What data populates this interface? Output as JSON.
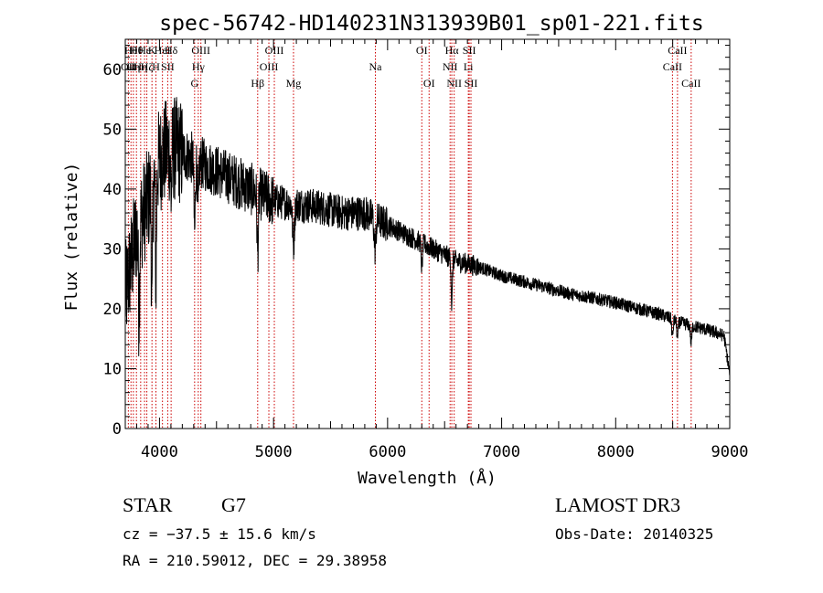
{
  "chart_data": {
    "type": "line",
    "title": "spec-56742-HD140231N313939B01_sp01-221.fits",
    "xlabel": "Wavelength (Å)",
    "ylabel": "Flux (relative)",
    "xlim": [
      3700,
      9000
    ],
    "ylim": [
      0,
      65
    ],
    "x_ticks": [
      4000,
      5000,
      6000,
      7000,
      8000,
      9000
    ],
    "y_ticks": [
      0,
      10,
      20,
      30,
      40,
      50,
      60
    ],
    "series": [
      {
        "name": "spectrum",
        "continuum": [
          [
            3700,
            22
          ],
          [
            3800,
            33
          ],
          [
            3900,
            38
          ],
          [
            4000,
            45
          ],
          [
            4100,
            47
          ],
          [
            4200,
            46
          ],
          [
            4300,
            45
          ],
          [
            4400,
            44
          ],
          [
            4500,
            43
          ],
          [
            4600,
            42
          ],
          [
            4700,
            41
          ],
          [
            4800,
            40
          ],
          [
            4900,
            39
          ],
          [
            5000,
            38
          ],
          [
            5200,
            37.5
          ],
          [
            5400,
            37
          ],
          [
            5600,
            36
          ],
          [
            5800,
            36
          ],
          [
            6000,
            34
          ],
          [
            6200,
            32
          ],
          [
            6400,
            30
          ],
          [
            6600,
            28
          ],
          [
            6800,
            27
          ],
          [
            7000,
            25.5
          ],
          [
            7200,
            24.5
          ],
          [
            7400,
            23.5
          ],
          [
            7600,
            22.5
          ],
          [
            7800,
            21.8
          ],
          [
            8000,
            21
          ],
          [
            8200,
            20
          ],
          [
            8400,
            19
          ],
          [
            8600,
            17.5
          ],
          [
            8800,
            16.5
          ],
          [
            8950,
            15.5
          ],
          [
            9000,
            9
          ]
        ],
        "absorption_features": [
          {
            "center": 3820,
            "depth": 14,
            "width": 6
          },
          {
            "center": 3934,
            "depth": 22,
            "width": 5
          },
          {
            "center": 3969,
            "depth": 18,
            "width": 5
          },
          {
            "center": 4102,
            "depth": 8,
            "width": 6
          },
          {
            "center": 4308,
            "depth": 12,
            "width": 6
          },
          {
            "center": 4340,
            "depth": 8,
            "width": 6
          },
          {
            "center": 4861,
            "depth": 10,
            "width": 6
          },
          {
            "center": 5175,
            "depth": 7,
            "width": 8
          },
          {
            "center": 5890,
            "depth": 5,
            "width": 8
          },
          {
            "center": 6300,
            "depth": 4,
            "width": 6
          },
          {
            "center": 6563,
            "depth": 8,
            "width": 5
          },
          {
            "center": 8498,
            "depth": 3,
            "width": 6
          },
          {
            "center": 8542,
            "depth": 3,
            "width": 6
          },
          {
            "center": 8662,
            "depth": 3,
            "width": 6
          }
        ]
      }
    ],
    "line_markers": [
      {
        "x": 3727,
        "row": 1,
        "label": "OII"
      },
      {
        "x": 3750,
        "row": 0,
        "label": "Hθ"
      },
      {
        "x": 3771,
        "row": 1,
        "label": "Hη"
      },
      {
        "x": 3798,
        "row": 0,
        "label": "Hθ"
      },
      {
        "x": 3835,
        "row": 1,
        "label": "Hη"
      },
      {
        "x": 3869,
        "row": 0,
        "label": "He"
      },
      {
        "x": 3889,
        "row": 1,
        "label": "Hζ"
      },
      {
        "x": 3934,
        "row": 0,
        "label": "K"
      },
      {
        "x": 3969,
        "row": 1,
        "label": "H"
      },
      {
        "x": 4026,
        "row": 0,
        "label": "HeI"
      },
      {
        "x": 4072,
        "row": 1,
        "label": "SII"
      },
      {
        "x": 4102,
        "row": 0,
        "label": "Hδ"
      },
      {
        "x": 4308,
        "row": 2,
        "label": "G"
      },
      {
        "x": 4340,
        "row": 1,
        "label": "Hγ"
      },
      {
        "x": 4363,
        "row": 0,
        "label": "OIII"
      },
      {
        "x": 4861,
        "row": 2,
        "label": "Hβ"
      },
      {
        "x": 4959,
        "row": 1,
        "label": "OIII"
      },
      {
        "x": 5007,
        "row": 0,
        "label": "OIII"
      },
      {
        "x": 5175,
        "row": 2,
        "label": "Mg"
      },
      {
        "x": 5893,
        "row": 1,
        "label": "Na"
      },
      {
        "x": 6300,
        "row": 0,
        "label": "OI"
      },
      {
        "x": 6364,
        "row": 2,
        "label": "OI"
      },
      {
        "x": 6548,
        "row": 1,
        "label": "NII"
      },
      {
        "x": 6563,
        "row": 0,
        "label": "Hα"
      },
      {
        "x": 6584,
        "row": 2,
        "label": "NII"
      },
      {
        "x": 6708,
        "row": 1,
        "label": "Li"
      },
      {
        "x": 6716,
        "row": 0,
        "label": "SII"
      },
      {
        "x": 6731,
        "row": 2,
        "label": "SII"
      },
      {
        "x": 8498,
        "row": 1,
        "label": "CaII"
      },
      {
        "x": 8542,
        "row": 0,
        "label": "CaII"
      },
      {
        "x": 8662,
        "row": 2,
        "label": "CaII"
      }
    ],
    "marker_color": "#cc0000",
    "line_color": "#000000"
  },
  "info": {
    "object_class": "STAR",
    "subclass": "G7",
    "survey": "LAMOST DR3",
    "cz": "cz = −37.5 ± 15.6 km/s",
    "obs_date": "Obs-Date: 20140325",
    "coords": "RA = 210.59012, DEC =  29.38958"
  }
}
